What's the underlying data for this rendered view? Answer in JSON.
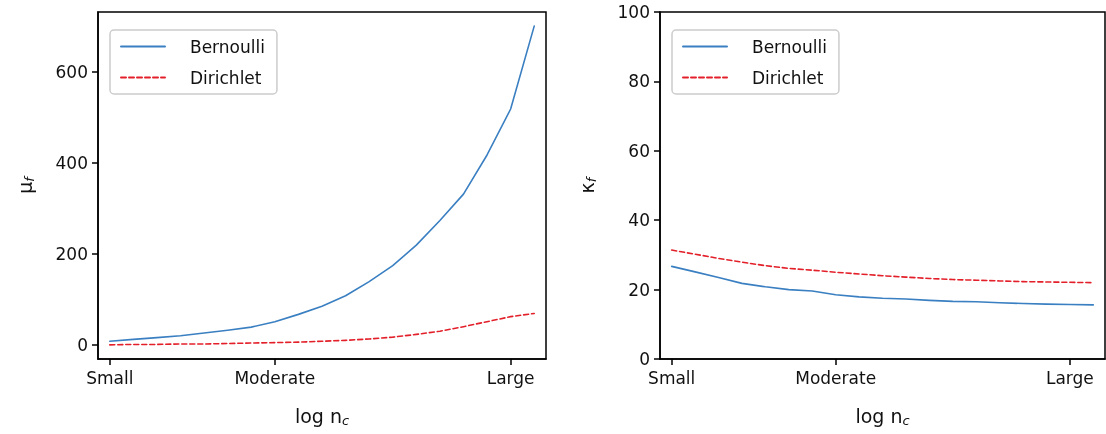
{
  "chart_data": [
    {
      "type": "line",
      "xlabel": "log n$_{c}$",
      "ylabel": "μ$_{f}$",
      "ylim": [
        -31,
        731
      ],
      "categories": [
        "Small",
        null,
        null,
        null,
        null,
        null,
        null,
        "Moderate",
        null,
        null,
        null,
        null,
        null,
        null,
        null,
        null,
        null,
        "Large",
        null
      ],
      "yticks": [
        0,
        200,
        400,
        600
      ],
      "grid": false,
      "legend": "top left",
      "marker": "none",
      "series": [
        {
          "name": "Bernoulli",
          "color": "#3a7fc1",
          "line_style": "solid",
          "values": [
            8,
            12,
            16,
            20,
            26,
            32,
            39,
            51,
            67,
            85,
            108,
            139,
            174,
            219,
            273,
            331,
            417,
            518,
            700
          ]
        },
        {
          "name": "Dirichlet",
          "color": "#e3202a",
          "line_style": "dashed",
          "values": [
            0,
            1,
            1,
            2,
            2,
            3,
            4,
            5,
            6,
            8,
            10,
            13,
            17,
            23,
            30,
            40,
            51,
            62,
            69
          ]
        }
      ]
    },
    {
      "type": "line",
      "xlabel": "log n$_{c}$",
      "ylabel": "κ$_{f}$",
      "ylim": [
        0,
        100
      ],
      "categories": [
        "Small",
        null,
        null,
        null,
        null,
        null,
        null,
        "Moderate",
        null,
        null,
        null,
        null,
        null,
        null,
        null,
        null,
        null,
        "Large",
        null
      ],
      "yticks": [
        0,
        20,
        40,
        60,
        80,
        100
      ],
      "grid": false,
      "legend": "top left",
      "marker": "none",
      "series": [
        {
          "name": "Bernoulli",
          "color": "#3a7fc1",
          "line_style": "solid",
          "values": [
            26.7,
            25.1,
            23.5,
            21.8,
            20.8,
            20,
            19.6,
            18.5,
            17.9,
            17.5,
            17.3,
            16.9,
            16.6,
            16.5,
            16.2,
            16,
            15.8,
            15.7,
            15.6
          ]
        },
        {
          "name": "Dirichlet",
          "color": "#e3202a",
          "line_style": "dashed",
          "values": [
            31.4,
            30.2,
            29,
            27.9,
            26.9,
            26.1,
            25.6,
            25,
            24.5,
            24,
            23.6,
            23.2,
            22.9,
            22.7,
            22.5,
            22.3,
            22.2,
            22.1,
            22
          ]
        }
      ]
    }
  ]
}
